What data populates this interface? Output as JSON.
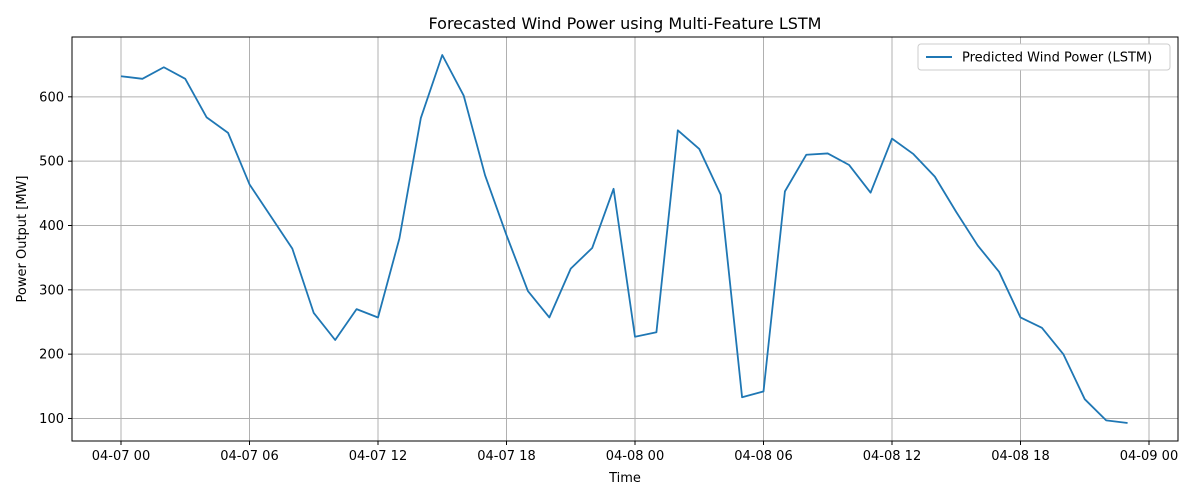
{
  "chart_data": {
    "type": "line",
    "title": "Forecasted Wind Power using Multi-Feature LSTM",
    "xlabel": "Time",
    "ylabel": "Power Output [MW]",
    "grid": true,
    "legend_position": "top-right",
    "x_tick_labels": [
      "04-07 00",
      "04-07 06",
      "04-07 12",
      "04-07 18",
      "04-08 00",
      "04-08 06",
      "04-08 12",
      "04-08 18",
      "04-09 00"
    ],
    "y_ticks": [
      100,
      200,
      300,
      400,
      500,
      600
    ],
    "ylim": [
      65,
      693
    ],
    "series": [
      {
        "name": "Predicted Wind Power (LSTM)",
        "color": "#1f77b4",
        "x": [
          "04-07 00:00",
          "04-07 01:00",
          "04-07 02:00",
          "04-07 03:00",
          "04-07 04:00",
          "04-07 05:00",
          "04-07 06:00",
          "04-07 07:00",
          "04-07 08:00",
          "04-07 09:00",
          "04-07 10:00",
          "04-07 11:00",
          "04-07 12:00",
          "04-07 13:00",
          "04-07 14:00",
          "04-07 15:00",
          "04-07 16:00",
          "04-07 17:00",
          "04-07 18:00",
          "04-07 19:00",
          "04-07 20:00",
          "04-07 21:00",
          "04-07 22:00",
          "04-07 23:00",
          "04-08 00:00",
          "04-08 01:00",
          "04-08 02:00",
          "04-08 03:00",
          "04-08 04:00",
          "04-08 05:00",
          "04-08 06:00",
          "04-08 07:00",
          "04-08 08:00",
          "04-08 09:00",
          "04-08 10:00",
          "04-08 11:00",
          "04-08 12:00",
          "04-08 13:00",
          "04-08 14:00",
          "04-08 15:00",
          "04-08 16:00",
          "04-08 17:00",
          "04-08 18:00",
          "04-08 19:00",
          "04-08 20:00",
          "04-08 21:00",
          "04-08 22:00",
          "04-08 23:00"
        ],
        "values": [
          632,
          628,
          646,
          628,
          568,
          544,
          464,
          414,
          364,
          264,
          222,
          270,
          257,
          380,
          567,
          665,
          602,
          478,
          385,
          298,
          257,
          333,
          365,
          457,
          227,
          234,
          548,
          519,
          448,
          133,
          142,
          453,
          510,
          512,
          494,
          451,
          535,
          511,
          476,
          421,
          369,
          328,
          257,
          241,
          200,
          130,
          97,
          93
        ]
      }
    ]
  }
}
